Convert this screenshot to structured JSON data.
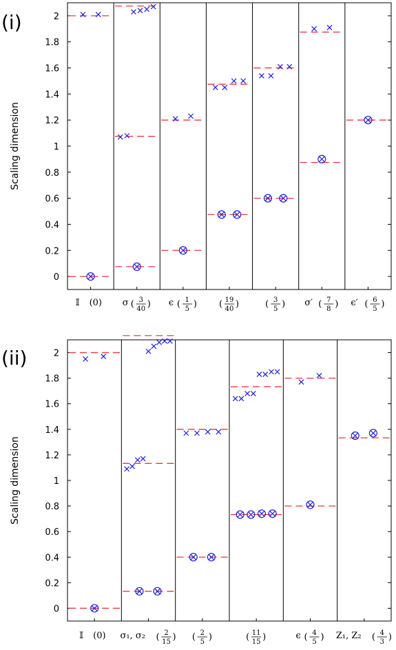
{
  "chart_data": [
    {
      "type": "scatter",
      "panel_label": "(i)",
      "ylabel": "Scaling dimension",
      "ylim": [
        -0.1,
        2.1
      ],
      "yticks": [
        "0",
        "0.2",
        "0.4",
        "0.6",
        "0.8",
        "1",
        "1.2",
        "1.4",
        "1.6",
        "1.8",
        "2"
      ],
      "exact_line_color": "#e8383b",
      "marker_color": "#1f1fd6",
      "sectors": [
        {
          "label": "𝕀 (0)",
          "main": "𝕀",
          "frac": null,
          "plain": "(0)",
          "exact": [
            0,
            2
          ],
          "crosses": [
            2.01,
            2.01
          ],
          "circled": [
            0
          ]
        },
        {
          "label": "σ (3/40)",
          "main": "σ",
          "frac": [
            "3",
            "40"
          ],
          "plain": null,
          "exact": [
            0.075,
            1.075,
            2.075
          ],
          "crosses": [
            1.07,
            1.08,
            2.03,
            2.04,
            2.05,
            2.07
          ],
          "circled": [
            0.075
          ]
        },
        {
          "label": "ϵ (1/5)",
          "main": "ϵ",
          "frac": [
            "1",
            "5"
          ],
          "plain": null,
          "exact": [
            0.2,
            1.2
          ],
          "crosses": [
            1.21,
            1.23
          ],
          "circled": [
            0.2
          ]
        },
        {
          "label": "(19/40)",
          "main": "",
          "frac": [
            "19",
            "40"
          ],
          "plain": null,
          "exact": [
            0.475,
            1.475
          ],
          "crosses": [
            1.45,
            1.45,
            1.5,
            1.5
          ],
          "circled": [
            0.475,
            0.475
          ]
        },
        {
          "label": "(3/5)",
          "main": "",
          "frac": [
            "3",
            "5"
          ],
          "plain": null,
          "exact": [
            0.6,
            1.6
          ],
          "crosses": [
            1.54,
            1.54,
            1.61,
            1.61
          ],
          "circled": [
            0.6,
            0.6
          ]
        },
        {
          "label": "σ′ (7/8)",
          "main": "σ′",
          "frac": [
            "7",
            "8"
          ],
          "plain": null,
          "exact": [
            0.875,
            1.875
          ],
          "crosses": [
            1.9,
            1.91
          ],
          "circled": [
            0.9
          ]
        },
        {
          "label": "ϵ′ (6/5)",
          "main": "ϵ′",
          "frac": [
            "6",
            "5"
          ],
          "plain": null,
          "exact": [
            1.2
          ],
          "crosses": [],
          "circled": [
            1.2
          ]
        }
      ]
    },
    {
      "type": "scatter",
      "panel_label": "(ii)",
      "ylabel": "Scaling dimension",
      "ylim": [
        -0.1,
        2.1
      ],
      "yticks": [
        "0",
        "0.2",
        "0.4",
        "0.6",
        "0.8",
        "1",
        "1.2",
        "1.4",
        "1.6",
        "1.8",
        "2"
      ],
      "exact_line_color": "#e8383b",
      "marker_color": "#1f1fd6",
      "sectors": [
        {
          "label": "𝕀 (0)",
          "main": "𝕀",
          "frac": null,
          "plain": "(0)",
          "exact": [
            0,
            2
          ],
          "crosses": [
            1.95,
            1.97
          ],
          "circled": [
            0
          ]
        },
        {
          "label": "σ1, σ2 (2/15)",
          "main": "σ₁, σ₂",
          "frac": [
            "2",
            "15"
          ],
          "plain": null,
          "exact": [
            0.133,
            1.133,
            2.133
          ],
          "crosses": [
            1.09,
            1.11,
            1.16,
            1.17,
            2.01,
            2.05,
            2.08,
            2.09,
            2.09
          ],
          "circled": [
            0.133,
            0.133
          ]
        },
        {
          "label": "(2/5)",
          "main": "",
          "frac": [
            "2",
            "5"
          ],
          "plain": null,
          "exact": [
            0.4,
            1.4
          ],
          "crosses": [
            1.37,
            1.37,
            1.38,
            1.38
          ],
          "circled": [
            0.4,
            0.4
          ]
        },
        {
          "label": "(11/15)",
          "main": "",
          "frac": [
            "11",
            "15"
          ],
          "plain": null,
          "exact": [
            0.733,
            1.733
          ],
          "crosses": [
            1.64,
            1.64,
            1.68,
            1.68,
            1.83,
            1.83,
            1.85,
            1.85
          ],
          "circled": [
            0.733,
            0.733,
            0.74,
            0.74
          ]
        },
        {
          "label": "ϵ (4/5)",
          "main": "ϵ",
          "frac": [
            "4",
            "5"
          ],
          "plain": null,
          "exact": [
            0.8,
            1.8
          ],
          "crosses": [
            1.77,
            1.82
          ],
          "circled": [
            0.81
          ]
        },
        {
          "label": "Z1, Z2 (4/3)",
          "main": "Z₁, Z₂",
          "frac": [
            "4",
            "3"
          ],
          "plain": null,
          "exact": [
            1.333
          ],
          "crosses": [],
          "circled": [
            1.35,
            1.37
          ]
        }
      ]
    }
  ]
}
